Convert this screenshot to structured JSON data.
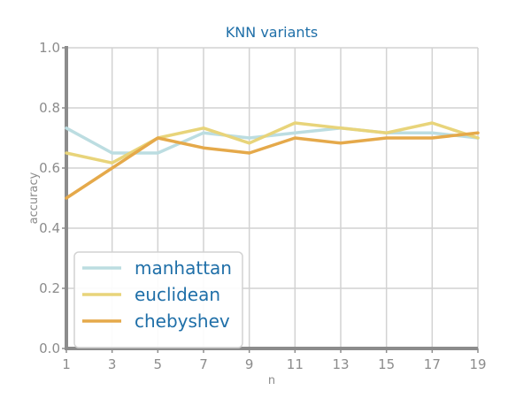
{
  "chart_data": {
    "type": "line",
    "title": "KNN variants",
    "xlabel": "n",
    "ylabel": "accuracy",
    "x": [
      1,
      3,
      5,
      7,
      9,
      11,
      13,
      15,
      17,
      19
    ],
    "xticks": [
      1,
      3,
      5,
      7,
      9,
      11,
      13,
      15,
      17,
      19
    ],
    "yticks": [
      "0.0",
      "0.2",
      "0.4",
      "0.6",
      "0.8",
      "1.0"
    ],
    "xlim": [
      1,
      19
    ],
    "ylim": [
      0,
      1
    ],
    "grid": true,
    "legend": "lower-left",
    "series": [
      {
        "name": "manhattan",
        "color": "#bcdde1",
        "values": [
          0.733,
          0.65,
          0.65,
          0.717,
          0.7,
          0.717,
          0.733,
          0.717,
          0.717,
          0.7
        ]
      },
      {
        "name": "euclidean",
        "color": "#e8d47a",
        "values": [
          0.65,
          0.617,
          0.7,
          0.733,
          0.683,
          0.75,
          0.733,
          0.717,
          0.75,
          0.7
        ]
      },
      {
        "name": "chebyshev",
        "color": "#e5a94a",
        "values": [
          0.5,
          0.6,
          0.7,
          0.667,
          0.65,
          0.7,
          0.683,
          0.7,
          0.7,
          0.717
        ]
      }
    ]
  }
}
